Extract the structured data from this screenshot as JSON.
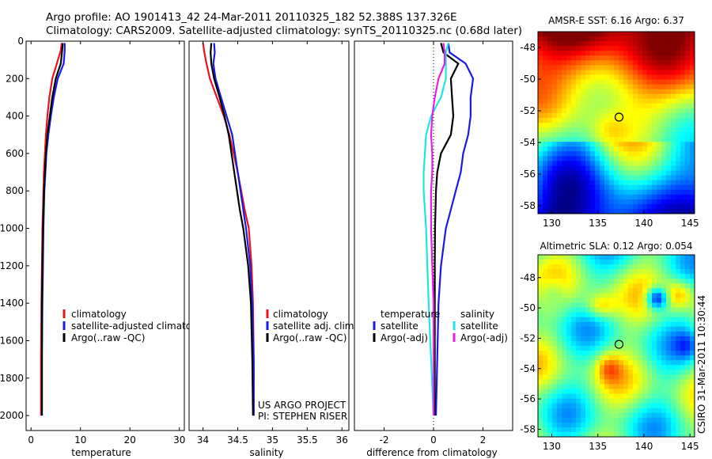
{
  "header": {
    "title_line1": "Argo profile: AO 1901413_42 24-Mar-2011 20110325_182 52.388S 137.326E",
    "title_line2": "Climatology: CARS2009. Satellite-adjusted climatology: synTS_20110325.nc (0.68d later)"
  },
  "side_label": "CSIRO 31-Mar-2011 10:30:44",
  "colors": {
    "red": "#e8141e",
    "blue": "#1a1ae6",
    "black": "#000000",
    "cyan": "#1ee6e6",
    "magenta": "#e61ee6"
  },
  "chart_data": [
    {
      "type": "line",
      "panel": "temperature",
      "xlabel": "temperature",
      "ylabel": "",
      "xlim": [
        -1,
        31
      ],
      "ylim": [
        2080,
        0
      ],
      "xticks": [
        0,
        10,
        20,
        30
      ],
      "yticks": [
        0,
        200,
        400,
        600,
        800,
        1000,
        1200,
        1400,
        1600,
        1800,
        2000
      ],
      "legend": [
        "climatology",
        "satellite-adjusted climatology",
        "Argo(..raw -QC)"
      ],
      "series": [
        {
          "name": "climatology",
          "color": "red",
          "x": [
            6.2,
            6.0,
            5.2,
            4.3,
            3.7,
            3.3,
            3.0,
            2.8,
            2.6,
            2.5,
            2.4,
            2.3,
            2.2,
            2.1,
            2.0,
            2.0
          ],
          "y": [
            10,
            50,
            120,
            200,
            300,
            400,
            500,
            600,
            700,
            800,
            900,
            1000,
            1200,
            1400,
            1700,
            2000
          ]
        },
        {
          "name": "satellite-adjusted climatology",
          "color": "blue",
          "x": [
            6.8,
            6.8,
            6.6,
            5.4,
            4.6,
            4.0,
            3.5,
            3.1,
            2.9,
            2.7,
            2.6,
            2.5,
            2.4,
            2.3,
            2.2,
            2.2
          ],
          "y": [
            10,
            50,
            120,
            200,
            300,
            400,
            500,
            600,
            700,
            800,
            900,
            1000,
            1200,
            1400,
            1700,
            2000
          ]
        },
        {
          "name": "Argo(..raw -QC)",
          "color": "black",
          "x": [
            6.4,
            6.3,
            6.0,
            5.0,
            4.3,
            3.8,
            3.3,
            3.0,
            2.8,
            2.6,
            2.5,
            2.4,
            2.3,
            2.2,
            2.2,
            2.2
          ],
          "y": [
            10,
            50,
            120,
            200,
            300,
            400,
            500,
            600,
            700,
            800,
            900,
            1000,
            1200,
            1400,
            1700,
            2000
          ]
        }
      ]
    },
    {
      "type": "line",
      "panel": "salinity",
      "xlabel": "salinity",
      "ylabel": "",
      "xlim": [
        33.8,
        36.1
      ],
      "ylim": [
        2080,
        0
      ],
      "xticks": [
        34,
        34.5,
        35,
        35.5,
        36
      ],
      "legend": [
        "climatology",
        "satellite adj. clim.",
        "Argo(..raw -QC)"
      ],
      "series": [
        {
          "name": "climatology",
          "color": "red",
          "x": [
            34.0,
            34.02,
            34.05,
            34.1,
            34.2,
            34.3,
            34.38,
            34.44,
            34.5,
            34.55,
            34.6,
            34.66,
            34.7,
            34.72,
            34.73,
            34.73
          ],
          "y": [
            10,
            60,
            120,
            200,
            300,
            400,
            500,
            600,
            700,
            800,
            900,
            1000,
            1200,
            1400,
            1700,
            2000
          ]
        },
        {
          "name": "satellite adj. clim.",
          "color": "blue",
          "x": [
            34.16,
            34.17,
            34.15,
            34.18,
            34.26,
            34.34,
            34.42,
            34.46,
            34.5,
            34.54,
            34.58,
            34.62,
            34.68,
            34.71,
            34.73,
            34.73
          ],
          "y": [
            10,
            60,
            120,
            200,
            300,
            400,
            500,
            600,
            700,
            800,
            900,
            1000,
            1200,
            1400,
            1700,
            2000
          ]
        },
        {
          "name": "Argo(..raw -QC)",
          "color": "black",
          "x": [
            34.12,
            34.11,
            34.12,
            34.16,
            34.24,
            34.31,
            34.37,
            34.41,
            34.45,
            34.49,
            34.53,
            34.58,
            34.65,
            34.69,
            34.71,
            34.72
          ],
          "y": [
            10,
            60,
            120,
            200,
            300,
            400,
            500,
            600,
            700,
            800,
            900,
            1000,
            1200,
            1400,
            1700,
            2000
          ]
        }
      ],
      "annotation": [
        "US ARGO PROJECT",
        "PI: STEPHEN RISER"
      ]
    },
    {
      "type": "line",
      "panel": "difference",
      "xlabel": "difference from climatology",
      "ylabel": "",
      "xlim": [
        -3.2,
        3.2
      ],
      "ylim": [
        2080,
        0
      ],
      "xticks": [
        -2,
        0,
        2
      ],
      "legend_headers": [
        "temperature",
        "salinity"
      ],
      "legend": [
        "satellite",
        "Argo(-adj)",
        "satellite",
        "Argo(-adj)"
      ],
      "series": [
        {
          "name": "satellite",
          "group": "temperature",
          "color": "blue",
          "x": [
            0.6,
            0.65,
            1.3,
            1.6,
            1.5,
            1.5,
            1.4,
            1.2,
            1.1,
            0.9,
            0.7,
            0.5,
            0.3,
            0.2,
            0.15,
            0.1
          ],
          "y": [
            10,
            60,
            120,
            200,
            300,
            400,
            500,
            600,
            700,
            800,
            900,
            1000,
            1200,
            1400,
            1700,
            2000
          ]
        },
        {
          "name": "Argo(-adj)",
          "group": "temperature",
          "color": "black",
          "x": [
            0.3,
            0.4,
            1.0,
            0.7,
            0.75,
            0.8,
            0.7,
            0.3,
            0.15,
            0.1,
            0.08,
            0.06,
            0.05,
            0.05,
            0.05,
            0.05
          ],
          "y": [
            10,
            60,
            120,
            200,
            300,
            400,
            500,
            600,
            700,
            800,
            900,
            1000,
            1200,
            1400,
            1700,
            2000
          ]
        },
        {
          "name": "satellite",
          "group": "salinity",
          "color": "cyan",
          "x": [
            0.6,
            0.5,
            0.5,
            0.5,
            0.3,
            -0.1,
            -0.3,
            -0.35,
            -0.4,
            -0.4,
            -0.35,
            -0.3,
            -0.25,
            -0.2,
            -0.1,
            0.0
          ],
          "y": [
            10,
            60,
            120,
            200,
            300,
            400,
            500,
            600,
            700,
            800,
            900,
            1000,
            1200,
            1400,
            1700,
            2000
          ]
        },
        {
          "name": "Argo(-adj)",
          "group": "salinity",
          "color": "magenta",
          "x": [
            0.4,
            0.45,
            0.45,
            0.2,
            0.05,
            -0.05,
            -0.1,
            -0.05,
            -0.05,
            -0.1,
            -0.1,
            -0.1,
            -0.05,
            0.0,
            0.0,
            0.0
          ],
          "y": [
            10,
            60,
            120,
            200,
            300,
            400,
            500,
            600,
            700,
            800,
            900,
            1000,
            1200,
            1400,
            1700,
            2000
          ]
        }
      ]
    },
    {
      "type": "heatmap",
      "panel": "sst_map",
      "title": "AMSR-E SST: 6.16 Argo: 6.37",
      "xlim": [
        128.5,
        145.5
      ],
      "ylim": [
        -58.5,
        -47
      ],
      "xticks": [
        130,
        135,
        140,
        145
      ],
      "yticks": [
        -48,
        -50,
        -52,
        -54,
        -56,
        -58
      ],
      "marker": {
        "lon": 137.3,
        "lat": -52.4
      }
    },
    {
      "type": "heatmap",
      "panel": "sla_map",
      "title": "Altimetric SLA: 0.12 Argo: 0.054",
      "xlim": [
        128.5,
        145.5
      ],
      "ylim": [
        -58.5,
        -46.5
      ],
      "xticks": [
        130,
        135,
        140,
        145
      ],
      "yticks": [
        -48,
        -50,
        -52,
        -54,
        -56,
        -58
      ],
      "marker": {
        "lon": 137.3,
        "lat": -52.4
      }
    }
  ]
}
